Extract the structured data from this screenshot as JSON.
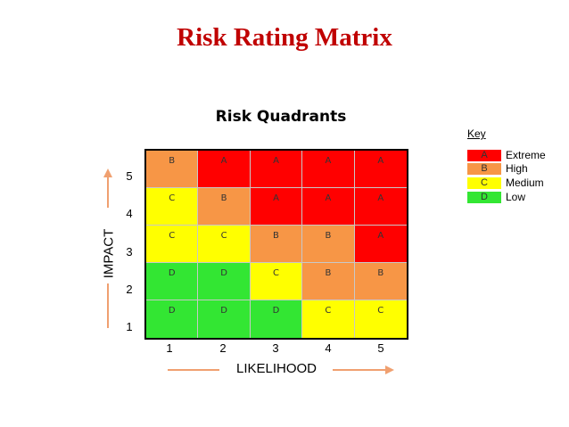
{
  "title": "Risk Rating Matrix",
  "subtitle": "Risk Quadrants",
  "x_axis": {
    "label": "LIKELIHOOD",
    "ticks": [
      "1",
      "2",
      "3",
      "4",
      "5"
    ]
  },
  "y_axis": {
    "label": "IMPACT",
    "ticks": [
      "5",
      "4",
      "3",
      "2",
      "1"
    ]
  },
  "matrix": [
    [
      "B",
      "A",
      "A",
      "A",
      "A"
    ],
    [
      "C",
      "B",
      "A",
      "A",
      "A"
    ],
    [
      "C",
      "C",
      "B",
      "B",
      "A"
    ],
    [
      "D",
      "D",
      "C",
      "B",
      "B"
    ],
    [
      "D",
      "D",
      "D",
      "C",
      "C"
    ]
  ],
  "colors": {
    "A": "#ff0000",
    "B": "#f79646",
    "C": "#ffff00",
    "D": "#33e633",
    "arrow": "#f0a070"
  },
  "key": {
    "title": "Key",
    "items": [
      {
        "code": "A",
        "label": "Extreme"
      },
      {
        "code": "B",
        "label": "High"
      },
      {
        "code": "C",
        "label": "Medium"
      },
      {
        "code": "D",
        "label": "Low"
      }
    ]
  }
}
